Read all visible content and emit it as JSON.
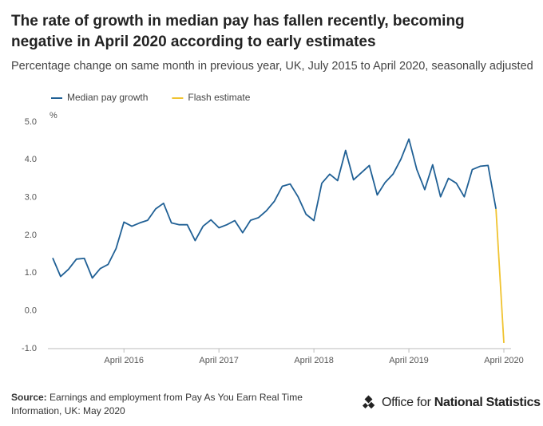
{
  "chart_data": {
    "type": "line",
    "title": "The rate of growth in median pay has fallen recently, becoming negative in April 2020 according to early estimates",
    "subtitle": "Percentage change on same month in previous year, UK, July 2015 to April 2020, seasonally adjusted",
    "y_unit": "%",
    "categories": [
      null,
      null,
      null,
      null,
      null,
      null,
      null,
      null,
      null,
      "April 2016",
      null,
      null,
      null,
      null,
      null,
      null,
      null,
      null,
      null,
      null,
      null,
      "April 2017",
      null,
      null,
      null,
      null,
      null,
      null,
      null,
      null,
      null,
      null,
      null,
      "April 2018",
      null,
      null,
      null,
      null,
      null,
      null,
      null,
      null,
      null,
      null,
      null,
      "April 2019",
      null,
      null,
      null,
      null,
      null,
      null,
      null,
      null,
      null,
      null,
      null,
      "April 2020"
    ],
    "series": [
      {
        "name": "Median pay growth",
        "color": "#206095",
        "values": [
          1.4,
          0.91,
          1.1,
          1.37,
          1.39,
          0.87,
          1.12,
          1.23,
          1.65,
          2.35,
          2.24,
          2.33,
          2.4,
          2.7,
          2.85,
          2.33,
          2.28,
          2.28,
          1.86,
          2.24,
          2.41,
          2.2,
          2.28,
          2.39,
          2.07,
          2.4,
          2.47,
          2.65,
          2.9,
          3.3,
          3.36,
          3.02,
          2.56,
          2.39,
          3.38,
          3.62,
          3.45,
          4.25,
          3.47,
          3.66,
          3.85,
          3.07,
          3.4,
          3.62,
          4.02,
          4.55,
          3.74,
          3.21,
          3.87,
          3.02,
          3.51,
          3.38,
          3.02,
          3.74,
          3.83,
          3.85,
          2.7,
          null
        ]
      },
      {
        "name": "Flash estimate",
        "color": "#f0c330",
        "values": [
          null,
          null,
          null,
          null,
          null,
          null,
          null,
          null,
          null,
          null,
          null,
          null,
          null,
          null,
          null,
          null,
          null,
          null,
          null,
          null,
          null,
          null,
          null,
          null,
          null,
          null,
          null,
          null,
          null,
          null,
          null,
          null,
          null,
          null,
          null,
          null,
          null,
          null,
          null,
          null,
          null,
          null,
          null,
          null,
          null,
          null,
          null,
          null,
          null,
          null,
          null,
          null,
          null,
          null,
          null,
          null,
          2.7,
          -0.85
        ]
      }
    ],
    "ylim": [
      -1,
      5
    ],
    "yticks": [
      {
        "value": -1,
        "label": "-1.0"
      },
      {
        "value": 0,
        "label": "0.0"
      },
      {
        "value": 1,
        "label": "1.0"
      },
      {
        "value": 2,
        "label": "2.0"
      },
      {
        "value": 3,
        "label": "3.0"
      },
      {
        "value": 4,
        "label": "4.0"
      },
      {
        "value": 5,
        "label": "5.0"
      }
    ],
    "grid": false,
    "legend": "top-left"
  },
  "source": {
    "label": "Source:",
    "text": "Earnings and employment from Pay As You Earn Real Time Information, UK: May 2020"
  },
  "logo": {
    "light": "Office for",
    "bold": "National Statistics"
  }
}
